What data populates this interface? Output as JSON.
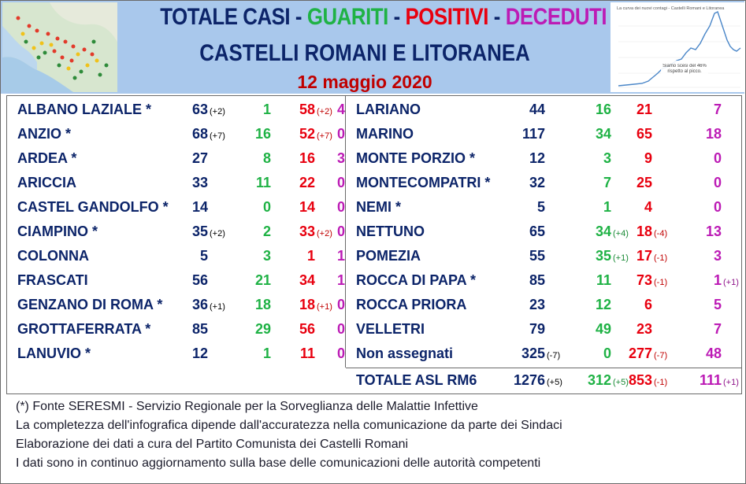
{
  "header": {
    "title_parts": [
      "TOTALE CASI",
      " - ",
      "GUARITI",
      " - ",
      "POSITIVI",
      " - ",
      "DECEDUTI"
    ],
    "subtitle": "CASTELLI ROMANI E LITORANEA",
    "date": "12 maggio 2020",
    "thumb_title": "La curva dei nuovi contagi - Castelli Romani e Litoranea",
    "thumb_note": "Siamo scesi del 46% rispetto al picco."
  },
  "colors": {
    "total": "#0c2469",
    "guariti": "#1fb245",
    "positivi": "#e8000f",
    "deceduti": "#bc1bb5",
    "header_bg": "#a9c8ec"
  },
  "left_rows": [
    {
      "name": "ALBANO LAZIALE *",
      "tot": "63",
      "tot_d": "(+2)",
      "gua": "1",
      "gua_d": "",
      "pos": "58",
      "pos_d": "(+2)",
      "dec": "4",
      "dec_d": ""
    },
    {
      "name": "ANZIO *",
      "tot": "68",
      "tot_d": "(+7)",
      "gua": "16",
      "gua_d": "",
      "pos": "52",
      "pos_d": "(+7)",
      "dec": "0",
      "dec_d": ""
    },
    {
      "name": "ARDEA *",
      "tot": "27",
      "tot_d": "",
      "gua": "8",
      "gua_d": "",
      "pos": "16",
      "pos_d": "",
      "dec": "3",
      "dec_d": ""
    },
    {
      "name": "ARICCIA",
      "tot": "33",
      "tot_d": "",
      "gua": "11",
      "gua_d": "",
      "pos": "22",
      "pos_d": "",
      "dec": "0",
      "dec_d": ""
    },
    {
      "name": "CASTEL GANDOLFO *",
      "tot": "14",
      "tot_d": "",
      "gua": "0",
      "gua_d": "",
      "pos": "14",
      "pos_d": "",
      "dec": "0",
      "dec_d": ""
    },
    {
      "name": "CIAMPINO *",
      "tot": "35",
      "tot_d": "(+2)",
      "gua": "2",
      "gua_d": "",
      "pos": "33",
      "pos_d": "(+2)",
      "dec": "0",
      "dec_d": ""
    },
    {
      "name": "COLONNA",
      "tot": "5",
      "tot_d": "",
      "gua": "3",
      "gua_d": "",
      "pos": "1",
      "pos_d": "",
      "dec": "1",
      "dec_d": ""
    },
    {
      "name": "FRASCATI",
      "tot": "56",
      "tot_d": "",
      "gua": "21",
      "gua_d": "",
      "pos": "34",
      "pos_d": "",
      "dec": "1",
      "dec_d": ""
    },
    {
      "name": "GENZANO DI ROMA *",
      "tot": "36",
      "tot_d": "(+1)",
      "gua": "18",
      "gua_d": "",
      "pos": "18",
      "pos_d": "(+1)",
      "dec": "0",
      "dec_d": ""
    },
    {
      "name": "GROTTAFERRATA *",
      "tot": "85",
      "tot_d": "",
      "gua": "29",
      "gua_d": "",
      "pos": "56",
      "pos_d": "",
      "dec": "0",
      "dec_d": ""
    },
    {
      "name": "LANUVIO *",
      "tot": "12",
      "tot_d": "",
      "gua": "1",
      "gua_d": "",
      "pos": "11",
      "pos_d": "",
      "dec": "0",
      "dec_d": ""
    }
  ],
  "right_rows": [
    {
      "name": "LARIANO",
      "tot": "44",
      "tot_d": "",
      "gua": "16",
      "gua_d": "",
      "pos": "21",
      "pos_d": "",
      "dec": "7",
      "dec_d": ""
    },
    {
      "name": "MARINO",
      "tot": "117",
      "tot_d": "",
      "gua": "34",
      "gua_d": "",
      "pos": "65",
      "pos_d": "",
      "dec": "18",
      "dec_d": ""
    },
    {
      "name": "MONTE PORZIO *",
      "tot": "12",
      "tot_d": "",
      "gua": "3",
      "gua_d": "",
      "pos": "9",
      "pos_d": "",
      "dec": "0",
      "dec_d": ""
    },
    {
      "name": "MONTECOMPATRI *",
      "tot": "32",
      "tot_d": "",
      "gua": "7",
      "gua_d": "",
      "pos": "25",
      "pos_d": "",
      "dec": "0",
      "dec_d": ""
    },
    {
      "name": "NEMI *",
      "tot": "5",
      "tot_d": "",
      "gua": "1",
      "gua_d": "",
      "pos": "4",
      "pos_d": "",
      "dec": "0",
      "dec_d": ""
    },
    {
      "name": "NETTUNO",
      "tot": "65",
      "tot_d": "",
      "gua": "34",
      "gua_d": "(+4)",
      "pos": "18",
      "pos_d": "(-4)",
      "dec": "13",
      "dec_d": ""
    },
    {
      "name": "POMEZIA",
      "tot": "55",
      "tot_d": "",
      "gua": "35",
      "gua_d": "(+1)",
      "pos": "17",
      "pos_d": "(-1)",
      "dec": "3",
      "dec_d": ""
    },
    {
      "name": "ROCCA DI PAPA *",
      "tot": "85",
      "tot_d": "",
      "gua": "11",
      "gua_d": "",
      "pos": "73",
      "pos_d": "(-1)",
      "dec": "1",
      "dec_d": "(+1)"
    },
    {
      "name": "ROCCA PRIORA",
      "tot": "23",
      "tot_d": "",
      "gua": "12",
      "gua_d": "",
      "pos": "6",
      "pos_d": "",
      "dec": "5",
      "dec_d": ""
    },
    {
      "name": "VELLETRI",
      "tot": "79",
      "tot_d": "",
      "gua": "49",
      "gua_d": "",
      "pos": "23",
      "pos_d": "",
      "dec": "7",
      "dec_d": ""
    },
    {
      "name": "Non assegnati",
      "tot": "325",
      "tot_d": "(-7)",
      "gua": "0",
      "gua_d": "",
      "pos": "277",
      "pos_d": "(-7)",
      "dec": "48",
      "dec_d": ""
    }
  ],
  "total_row": {
    "name": "TOTALE ASL RM6",
    "tot": "1276",
    "tot_d": "(+5)",
    "gua": "312",
    "gua_d": "(+5)",
    "pos": "853",
    "pos_d": "(-1)",
    "dec": "111",
    "dec_d": "(+1)"
  },
  "footer": [
    "(*) Fonte SERESMI - Servizio Regionale per la Sorveglianza delle Malattie Infettive",
    "La completezza dell'infografica dipende dall'accuratezza nella comunicazione da parte dei Sindaci",
    "Elaborazione dei dati a cura del Partito Comunista dei Castelli Romani",
    "I dati sono in continuo aggiornamento sulla base delle comunicazioni delle autorità competenti"
  ]
}
